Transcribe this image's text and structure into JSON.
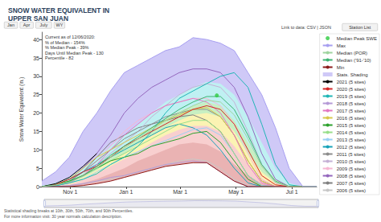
{
  "chart_data": {
    "type": "line",
    "title": "SNOW WATER EQUIVALENT IN\nUPPER SAN JUAN",
    "buttons": [
      "Jan",
      "Apr",
      "July",
      "WY"
    ],
    "link_text": "Link to data: CSV | JSON",
    "station_button": "Station List",
    "info": [
      "Current as of 12/06/2020:",
      "% of Median - 154%",
      "% Median Peak - 39%",
      "Days Until Median Peak - 130",
      "Percentile - 82"
    ],
    "footnotes": [
      "Statistical shading breaks at 10th, 30th, 50th, 70th, and 90th Percentiles.",
      "For more information visit: 30 year normals calculation description."
    ],
    "y_label": "Snow Water Equivalent (in.)",
    "x": [
      0,
      15,
      30,
      45,
      60,
      75,
      90,
      105,
      120,
      135,
      150,
      165,
      180,
      195,
      210,
      225,
      240,
      255,
      270,
      285,
      300
    ],
    "xlim": [
      0,
      300
    ],
    "xticks": [
      {
        "value": 31,
        "label": "Nov 1"
      },
      {
        "value": 92,
        "label": "Jan 1"
      },
      {
        "value": 151,
        "label": "Mar 1"
      },
      {
        "value": 212,
        "label": "May 1"
      },
      {
        "value": 273,
        "label": "Jul 1"
      }
    ],
    "ylim": [
      0,
      42
    ],
    "yticks": [
      0,
      5,
      10,
      15,
      20,
      25,
      30,
      35,
      40
    ],
    "grid": false,
    "legend": "top-right",
    "series": [
      {
        "name": "Median Peak SWE",
        "type": "scatter",
        "marker": "circle",
        "color": "#2ecc40",
        "x": [
          191
        ],
        "values": [
          24.8
        ]
      },
      {
        "name": "Max",
        "color": "#a79ff0",
        "values": [
          1.5,
          4,
          8,
          15,
          20,
          26,
          31,
          33,
          35,
          37,
          38,
          40.5,
          40,
          39,
          37,
          31,
          25,
          16,
          5,
          0,
          0
        ]
      },
      {
        "name": "Median (POR)",
        "color": "#9fd49f",
        "values": [
          0,
          0.4,
          1.2,
          2.8,
          5,
          8,
          10.5,
          13,
          15.5,
          18,
          20,
          22,
          23.5,
          23,
          19.5,
          13,
          5.5,
          1.2,
          0,
          0,
          0
        ]
      },
      {
        "name": "Median ('91-'10)",
        "color": "#3cb371",
        "values": [
          0,
          0.4,
          1.3,
          3,
          5.5,
          8.5,
          11,
          13.5,
          16,
          18.5,
          21,
          23,
          24.5,
          24.5,
          21,
          14,
          6,
          1.5,
          0,
          0,
          0
        ]
      },
      {
        "name": "Min",
        "color": "#8b1a1a",
        "values": [
          0,
          0,
          0,
          0.3,
          0.8,
          1.5,
          2.5,
          3.5,
          4.5,
          5.5,
          6,
          6.5,
          6.5,
          4,
          1.5,
          0,
          0,
          0,
          0,
          0,
          0
        ]
      },
      {
        "name": "Stats. Shading",
        "type": "shading",
        "colors": [
          "#cfc9f7",
          "#bff0f2",
          "#c8efc2",
          "#fbf3b3",
          "#f8cfcf",
          "#eab3b3"
        ],
        "bounds": [
          [
            1.5,
            4,
            8,
            15,
            20,
            26,
            31,
            33,
            35,
            37,
            38,
            40.5,
            40,
            39,
            37,
            31,
            25,
            16,
            5,
            0,
            0
          ],
          [
            0.3,
            1,
            2.5,
            5,
            8,
            11,
            14,
            17,
            20,
            23,
            25,
            27,
            28.5,
            28,
            25,
            19,
            12,
            5,
            1,
            0,
            0
          ],
          [
            0.1,
            0.5,
            1.5,
            3.5,
            6,
            8.5,
            11,
            13.5,
            16,
            18.5,
            20.5,
            22,
            23,
            22,
            18,
            12,
            6,
            2,
            0.3,
            0,
            0
          ],
          [
            0,
            0.3,
            1,
            2.5,
            4.5,
            7,
            9,
            11.5,
            14,
            16,
            18,
            19.5,
            20,
            19,
            15,
            9,
            4,
            1,
            0,
            0,
            0
          ],
          [
            0,
            0.1,
            0.6,
            1.8,
            3.5,
            5.5,
            7.5,
            9.5,
            12,
            14,
            15.5,
            16.5,
            16.5,
            15,
            11,
            6,
            2,
            0.3,
            0,
            0,
            0
          ],
          [
            0,
            0,
            0.2,
            1,
            2,
            3.5,
            5,
            7,
            8.5,
            10,
            11.5,
            12,
            11.5,
            9.5,
            6,
            3,
            0.8,
            0,
            0,
            0,
            0
          ],
          [
            0,
            0,
            0,
            0.3,
            0.8,
            1.5,
            2.5,
            3.5,
            4.5,
            5.5,
            6,
            6.5,
            6.5,
            4,
            1.5,
            0,
            0,
            0,
            0,
            0,
            0
          ]
        ]
      },
      {
        "name": "2021 (5 sites)",
        "color": "#000000",
        "values": [
          0,
          0.8,
          2.5,
          5.5,
          9,
          null,
          null,
          null,
          null,
          null,
          null,
          null,
          null,
          null,
          null,
          null,
          null,
          null,
          null,
          null,
          null
        ]
      },
      {
        "name": "2020 (5 sites)",
        "color": "#d62728",
        "values": [
          0,
          0.5,
          2,
          4,
          5.5,
          8,
          11,
          13,
          15,
          17,
          19,
          21,
          22,
          21,
          17,
          10,
          3,
          0.5,
          0,
          0,
          0
        ]
      },
      {
        "name": "2019 (5 sites)",
        "color": "#1fb5b5",
        "values": [
          0,
          0.2,
          1,
          2,
          3.5,
          6,
          8,
          11,
          15,
          20,
          24,
          26,
          28,
          30,
          31,
          27,
          17,
          6,
          0.5,
          0,
          0
        ]
      },
      {
        "name": "2018 (5 sites)",
        "color": "#b59ad6",
        "values": [
          0,
          0,
          0.3,
          0.8,
          1.5,
          2.5,
          3,
          4,
          5,
          6,
          6.5,
          7,
          6.5,
          4,
          1.5,
          0,
          0,
          0,
          0,
          0,
          0
        ]
      },
      {
        "name": "2017 (5 sites)",
        "color": "#e377c2",
        "values": [
          0,
          0.3,
          1,
          3,
          6,
          10,
          14,
          17,
          20,
          22,
          23,
          24,
          23,
          20,
          14,
          6,
          1,
          0,
          0,
          0,
          0
        ]
      },
      {
        "name": "2016 (5 sites)",
        "color": "#d9c84a",
        "values": [
          0,
          0.5,
          2,
          5,
          8,
          10,
          12,
          14,
          16,
          18,
          19.5,
          21,
          21.5,
          19,
          14,
          7,
          1.5,
          0,
          0,
          0,
          0
        ]
      },
      {
        "name": "2015 (5 sites)",
        "color": "#2ca02c",
        "values": [
          0,
          0.5,
          1.5,
          3,
          5,
          7,
          8,
          9,
          11,
          12,
          13,
          14.5,
          15,
          12,
          7,
          2,
          0,
          0,
          0,
          0,
          0
        ]
      },
      {
        "name": "2014 (5 sites)",
        "color": "#98df8a",
        "values": [
          0,
          0.5,
          1.5,
          3,
          5,
          7,
          9,
          11,
          13,
          15,
          17,
          18,
          18,
          15,
          9,
          3,
          0,
          0,
          0,
          0,
          0
        ]
      },
      {
        "name": "2013 (5 sites)",
        "color": "#9ad0f5",
        "values": [
          0,
          0.2,
          1,
          2,
          4,
          6,
          8,
          9.5,
          11,
          12.5,
          14,
          15.5,
          16,
          14,
          9,
          3,
          0.3,
          0,
          0,
          0,
          0
        ]
      },
      {
        "name": "2012 (5 sites)",
        "color": "#17a2b8",
        "values": [
          0,
          0.5,
          2,
          4,
          6,
          8,
          10,
          12,
          14,
          16,
          17,
          16,
          14,
          10,
          5,
          1,
          0,
          0,
          0,
          0,
          0
        ]
      },
      {
        "name": "2011 (5 sites)",
        "color": "#8c8c8c",
        "values": [
          0,
          0.3,
          1.5,
          4,
          7,
          10,
          13,
          15,
          17,
          19,
          20,
          21,
          21,
          19,
          14,
          7,
          1.5,
          0,
          0,
          0,
          0
        ]
      },
      {
        "name": "2010 (5 sites)",
        "color": "#c5b0d5",
        "values": [
          0,
          0.3,
          1,
          3,
          6,
          9,
          12,
          15,
          19,
          22,
          25,
          27,
          28,
          27,
          23,
          15,
          6,
          1,
          0,
          0,
          0
        ]
      },
      {
        "name": "2009 (5 sites)",
        "color": "#f7b6d2",
        "values": [
          0,
          0.3,
          1,
          3,
          7,
          11,
          15,
          18,
          20,
          22,
          23,
          24,
          24,
          22,
          17,
          9,
          2,
          0,
          0,
          0,
          0
        ]
      },
      {
        "name": "2008 (5 sites)",
        "color": "#9467bd",
        "values": [
          0,
          0.5,
          2,
          5,
          9,
          14,
          20,
          24,
          27,
          29,
          31,
          32,
          32,
          31,
          27,
          19,
          9,
          2,
          0,
          0,
          0
        ]
      },
      {
        "name": "2007 (5 sites)",
        "color": "#7f7f7f",
        "values": [
          0,
          0.3,
          1.5,
          4,
          8,
          12,
          14,
          16,
          17,
          18,
          19,
          19.5,
          18,
          15,
          9,
          3,
          0.3,
          0,
          0,
          0,
          0
        ]
      },
      {
        "name": "2006 (5 sites)",
        "color": "#c7c7c7",
        "values": [
          0,
          0,
          0.3,
          0.8,
          1.5,
          2,
          3,
          4,
          5,
          6,
          7,
          7.5,
          7,
          5,
          2,
          0.3,
          0,
          0,
          0,
          0,
          0
        ]
      }
    ]
  }
}
